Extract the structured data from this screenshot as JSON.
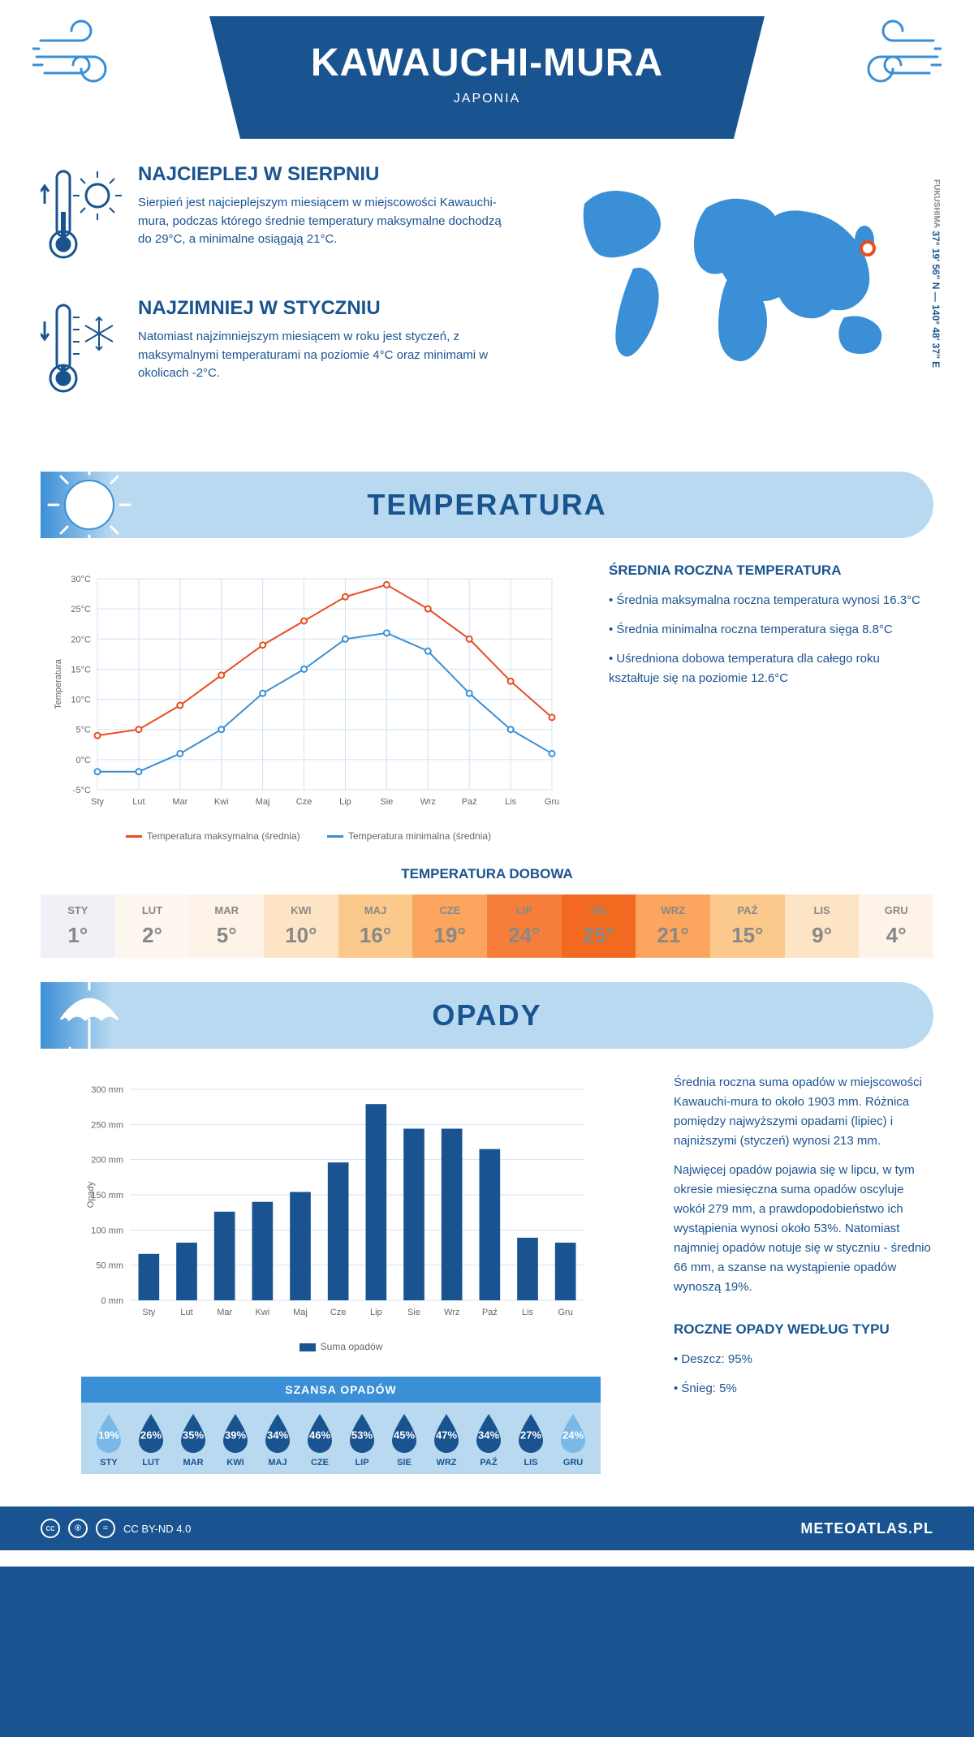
{
  "header": {
    "title": "KAWAUCHI-MURA",
    "country": "JAPONIA"
  },
  "coords": {
    "region": "FUKUSHIMA",
    "lat": "37° 19' 56'' N",
    "lon": "140° 48' 37'' E"
  },
  "marker": {
    "left_pct": 81,
    "top_pct": 34
  },
  "intro": {
    "hot": {
      "title": "NAJCIEPLEJ W SIERPNIU",
      "text": "Sierpień jest najcieplejszym miesiącem w miejscowości Kawauchi-mura, podczas którego średnie temperatury maksymalne dochodzą do 29°C, a minimalne osiągają 21°C."
    },
    "cold": {
      "title": "NAJZIMNIEJ W STYCZNIU",
      "text": "Natomiast najzimniejszym miesiącem w roku jest styczeń, z maksymalnymi temperaturami na poziomie 4°C oraz minimami w okolicach -2°C."
    }
  },
  "months_short": [
    "Sty",
    "Lut",
    "Mar",
    "Kwi",
    "Maj",
    "Cze",
    "Lip",
    "Sie",
    "Wrz",
    "Paź",
    "Lis",
    "Gru"
  ],
  "months_upper": [
    "STY",
    "LUT",
    "MAR",
    "KWI",
    "MAJ",
    "CZE",
    "LIP",
    "SIE",
    "WRZ",
    "PAŹ",
    "LIS",
    "GRU"
  ],
  "temperature": {
    "section_title": "TEMPERATURA",
    "ylabel": "Temperatura",
    "ylim": [
      -5,
      30
    ],
    "ytick_step": 5,
    "yticks": [
      "-5°C",
      "0°C",
      "5°C",
      "10°C",
      "15°C",
      "20°C",
      "25°C",
      "30°C"
    ],
    "max_series": {
      "label": "Temperatura maksymalna (średnia)",
      "color": "#e84c1f",
      "values": [
        4,
        5,
        9,
        14,
        19,
        23,
        27,
        29,
        25,
        20,
        13,
        7
      ]
    },
    "min_series": {
      "label": "Temperatura minimalna (średnia)",
      "color": "#3b8fd6",
      "values": [
        -2,
        -2,
        1,
        5,
        11,
        15,
        20,
        21,
        18,
        11,
        5,
        1
      ]
    },
    "grid_color": "#d0e3f4",
    "info_title": "ŚREDNIA ROCZNA TEMPERATURA",
    "info_items": [
      "Średnia maksymalna roczna temperatura wynosi 16.3°C",
      "Średnia minimalna roczna temperatura sięga 8.8°C",
      "Uśredniona dobowa temperatura dla całego roku kształtuje się na poziomie 12.6°C"
    ]
  },
  "daily_temp": {
    "title": "TEMPERATURA DOBOWA",
    "values": [
      "1°",
      "2°",
      "5°",
      "10°",
      "16°",
      "19°",
      "24°",
      "25°",
      "21°",
      "15°",
      "9°",
      "4°"
    ],
    "colors": [
      "#f2f0f7",
      "#fdf7f0",
      "#fef3e8",
      "#fde4c4",
      "#fcc98c",
      "#fba55e",
      "#f77e3a",
      "#f26a1f",
      "#fba55e",
      "#fcc98c",
      "#fde4c4",
      "#fef3e8"
    ]
  },
  "precip": {
    "section_title": "OPADY",
    "ylabel": "Opady",
    "ylim": [
      0,
      300
    ],
    "ytick_step": 50,
    "yticks": [
      "0 mm",
      "50 mm",
      "100 mm",
      "150 mm",
      "200 mm",
      "250 mm",
      "300 mm"
    ],
    "bar_color": "#1a5490",
    "series_label": "Suma opadów",
    "values": [
      66,
      82,
      126,
      140,
      154,
      196,
      279,
      244,
      244,
      215,
      89,
      82
    ],
    "grid_color": "#d0e3f4",
    "text1": "Średnia roczna suma opadów w miejscowości Kawauchi-mura to około 1903 mm. Różnica pomiędzy najwyższymi opadami (lipiec) i najniższymi (styczeń) wynosi 213 mm.",
    "text2": "Najwięcej opadów pojawia się w lipcu, w tym okresie miesięczna suma opadów oscyluje wokół 279 mm, a prawdopodobieństwo ich wystąpienia wynosi około 53%. Natomiast najmniej opadów notuje się w styczniu - średnio 66 mm, a szanse na wystąpienie opadów wynoszą 19%.",
    "type_title": "ROCZNE OPADY WEDŁUG TYPU",
    "type_items": [
      "Deszcz: 95%",
      "Śnieg: 5%"
    ]
  },
  "chance": {
    "title": "SZANSA OPADÓW",
    "values": [
      "19%",
      "26%",
      "35%",
      "39%",
      "34%",
      "46%",
      "53%",
      "45%",
      "47%",
      "34%",
      "27%",
      "24%"
    ],
    "drop_colors": [
      "#7ab8e8",
      "#1a5490",
      "#1a5490",
      "#1a5490",
      "#1a5490",
      "#1a5490",
      "#1a5490",
      "#1a5490",
      "#1a5490",
      "#1a5490",
      "#1a5490",
      "#7ab8e8"
    ]
  },
  "footer": {
    "license": "CC BY-ND 4.0",
    "site": "METEOATLAS.PL"
  },
  "colors": {
    "primary": "#1a5490",
    "light_blue": "#b8d9f0",
    "mid_blue": "#3b8fd6",
    "accent": "#e84c1f"
  }
}
